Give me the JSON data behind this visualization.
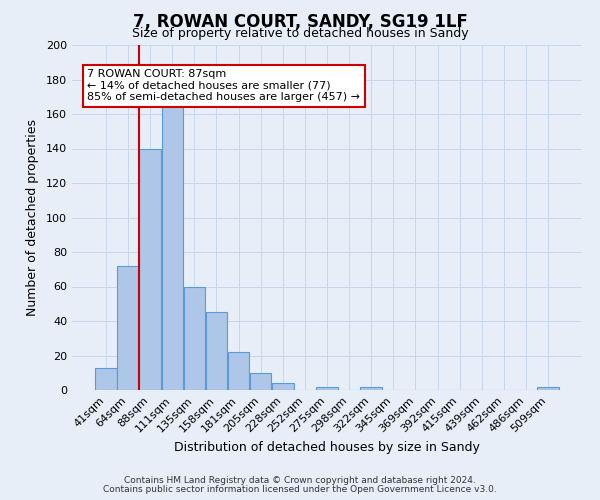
{
  "title": "7, ROWAN COURT, SANDY, SG19 1LF",
  "subtitle": "Size of property relative to detached houses in Sandy",
  "xlabel": "Distribution of detached houses by size in Sandy",
  "ylabel": "Number of detached properties",
  "bar_labels": [
    "41sqm",
    "64sqm",
    "88sqm",
    "111sqm",
    "135sqm",
    "158sqm",
    "181sqm",
    "205sqm",
    "228sqm",
    "252sqm",
    "275sqm",
    "298sqm",
    "322sqm",
    "345sqm",
    "369sqm",
    "392sqm",
    "415sqm",
    "439sqm",
    "462sqm",
    "486sqm",
    "509sqm"
  ],
  "bar_values": [
    13,
    72,
    140,
    166,
    60,
    45,
    22,
    10,
    4,
    0,
    2,
    0,
    2,
    0,
    0,
    0,
    0,
    0,
    0,
    0,
    2
  ],
  "bar_color": "#aec6e8",
  "bar_edge_color": "#5b9bd5",
  "property_line_index": 2,
  "property_line_color": "#cc0000",
  "ylim": [
    0,
    200
  ],
  "yticks": [
    0,
    20,
    40,
    60,
    80,
    100,
    120,
    140,
    160,
    180,
    200
  ],
  "annotation_title": "7 ROWAN COURT: 87sqm",
  "annotation_line1": "← 14% of detached houses are smaller (77)",
  "annotation_line2": "85% of semi-detached houses are larger (457) →",
  "annotation_box_facecolor": "#ffffff",
  "annotation_box_edgecolor": "#cc0000",
  "footnote1": "Contains HM Land Registry data © Crown copyright and database right 2024.",
  "footnote2": "Contains public sector information licensed under the Open Government Licence v3.0.",
  "grid_color": "#c8d8ec",
  "background_color": "#e8eef8",
  "title_fontsize": 12,
  "subtitle_fontsize": 9,
  "xlabel_fontsize": 9,
  "ylabel_fontsize": 9,
  "tick_fontsize": 8,
  "annotation_fontsize": 8,
  "footnote_fontsize": 6.5
}
